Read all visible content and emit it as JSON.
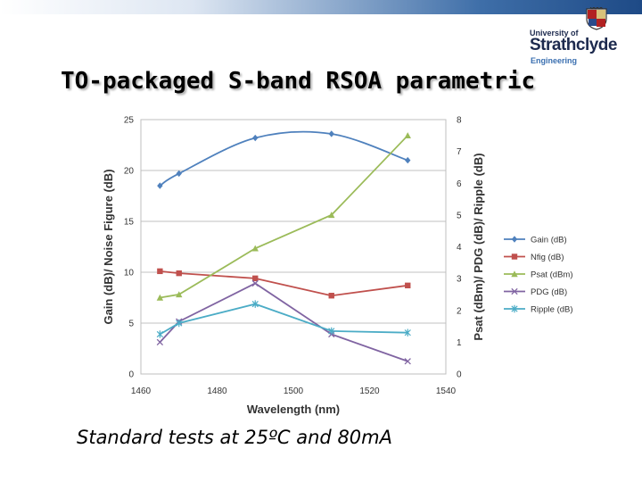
{
  "slide": {
    "title": "TO-packaged S-band RSOA parametric",
    "subtitle": "Standard tests at 25ºC and 80mA"
  },
  "logo": {
    "university_of": "University of",
    "name": "Strathclyde",
    "department": "Engineering"
  },
  "colors": {
    "gain": "#4f81bd",
    "nfig": "#c0504d",
    "psat": "#9bbb59",
    "pdg": "#8064a2",
    "ripple": "#4bacc6"
  },
  "chart_data": {
    "type": "line",
    "title": "",
    "xlabel": "Wavelength (nm)",
    "ylabel": "Gain (dB)/ Noise Figure (dB)",
    "y2label": "Psat (dBm)/ PDG (dB)/ Ripple (dB)",
    "xlim": [
      1460,
      1540
    ],
    "ylim": [
      0,
      25
    ],
    "y2lim": [
      0,
      8
    ],
    "xticks": [
      "1460",
      "1480",
      "1500",
      "1520",
      "1540"
    ],
    "yticks": [
      "0",
      "5",
      "10",
      "15",
      "20",
      "25"
    ],
    "y2ticks": [
      "0",
      "1",
      "2",
      "3",
      "4",
      "5",
      "6",
      "7",
      "8"
    ],
    "grid": true,
    "legend_position": "right",
    "series": [
      {
        "name": "Gain (dB)",
        "axis": "left",
        "marker": "diamond",
        "smooth": true,
        "x": [
          1465,
          1470,
          1490,
          1510,
          1530
        ],
        "y": [
          18.5,
          19.7,
          23.2,
          23.6,
          21.0
        ]
      },
      {
        "name": "Nfig (dB)",
        "axis": "left",
        "marker": "square",
        "smooth": false,
        "x": [
          1465,
          1470,
          1490,
          1510,
          1530
        ],
        "y": [
          10.1,
          9.9,
          9.4,
          7.7,
          8.7
        ]
      },
      {
        "name": "Psat (dBm)",
        "axis": "right",
        "marker": "triangle",
        "smooth": false,
        "x": [
          1465,
          1470,
          1490,
          1510,
          1530
        ],
        "y": [
          2.4,
          2.5,
          3.95,
          5.0,
          7.5
        ]
      },
      {
        "name": "PDG (dB)",
        "axis": "right",
        "marker": "x",
        "smooth": false,
        "x": [
          1465,
          1470,
          1490,
          1510,
          1530
        ],
        "y": [
          1.0,
          1.65,
          2.85,
          1.25,
          0.4
        ]
      },
      {
        "name": "Ripple (dB)",
        "axis": "right",
        "marker": "star",
        "smooth": false,
        "x": [
          1465,
          1470,
          1490,
          1510,
          1530
        ],
        "y": [
          1.25,
          1.6,
          2.2,
          1.35,
          1.3
        ]
      }
    ]
  }
}
